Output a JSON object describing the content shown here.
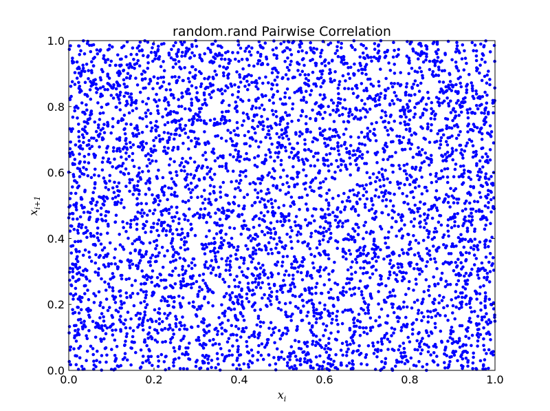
{
  "chart_data": {
    "type": "scatter",
    "title": "random.rand Pairwise Correlation",
    "xlabel": "x",
    "xlabel_subscript": "i",
    "ylabel": "x",
    "ylabel_subscript": "i+1",
    "xlim": [
      0.0,
      1.0
    ],
    "ylim": [
      0.0,
      1.0
    ],
    "xticks": [
      "0.0",
      "0.2",
      "0.4",
      "0.6",
      "0.8",
      "1.0"
    ],
    "yticks": [
      "0.0",
      "0.2",
      "0.4",
      "0.6",
      "0.8",
      "1.0"
    ],
    "grid": false,
    "legend": "none",
    "marker_color": "#0000ff",
    "series": [
      {
        "n_points": 5000,
        "distribution": "uniform(0,1) pairs (x_i, x_i+1)",
        "points": []
      }
    ]
  }
}
